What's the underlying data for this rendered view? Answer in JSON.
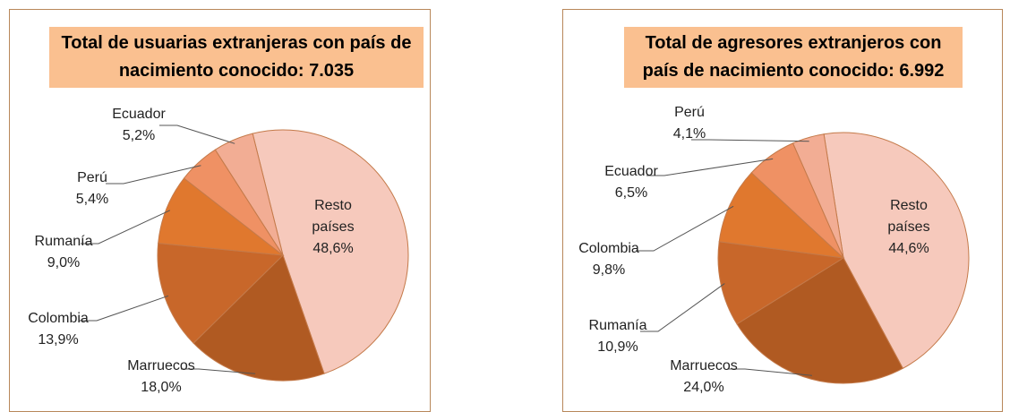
{
  "chart_data": [
    {
      "type": "pie",
      "title": "Total de usuarias extranjeras con país de nacimiento conocido: 7.035",
      "categories": [
        "Resto países",
        "Marruecos",
        "Colombia",
        "Rumanía",
        "Perú",
        "Ecuador"
      ],
      "values": [
        48.6,
        18.0,
        13.9,
        9.0,
        5.4,
        5.2
      ],
      "value_labels": [
        "48,6%",
        "18,0%",
        "13,9%",
        "9,0%",
        "5,4%",
        "5,2%"
      ],
      "colors": [
        "#f6c9bc",
        "#b05a22",
        "#c8672a",
        "#e0782e",
        "#ef9164",
        "#f2ad94"
      ]
    },
    {
      "type": "pie",
      "title": "Total de agresores extranjeros con país de nacimiento conocido: 6.992",
      "categories": [
        "Resto países",
        "Marruecos",
        "Rumanía",
        "Colombia",
        "Ecuador",
        "Perú"
      ],
      "values": [
        44.6,
        24.0,
        10.9,
        9.8,
        6.5,
        4.1
      ],
      "value_labels": [
        "44,6%",
        "24,0%",
        "10,9%",
        "9,8%",
        "6,5%",
        "4,1%"
      ],
      "colors": [
        "#f6c9bc",
        "#b05a22",
        "#c8672a",
        "#e0782e",
        "#ef9164",
        "#f2ad94"
      ]
    }
  ]
}
